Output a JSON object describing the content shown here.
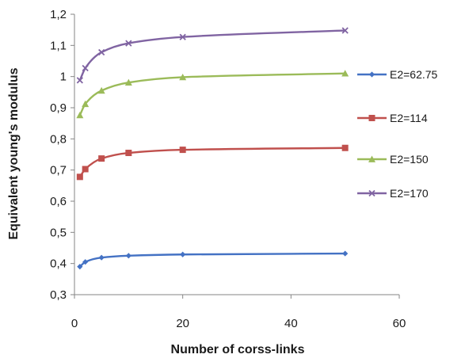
{
  "chart_data": {
    "type": "line",
    "title": "",
    "xlabel": "Number of corss-links",
    "ylabel": "Equivalent young's modulus",
    "xlim": [
      0,
      60
    ],
    "ylim": [
      0.3,
      1.2
    ],
    "xticks": [
      0,
      20,
      40,
      60
    ],
    "yticks": [
      0.3,
      0.4,
      0.5,
      0.6,
      0.7,
      0.8,
      0.9,
      1.0,
      1.1,
      1.2
    ],
    "xtick_labels": [
      "0",
      "20",
      "40",
      "60"
    ],
    "ytick_labels": [
      "0,3",
      "0,4",
      "0,5",
      "0,6",
      "0,7",
      "0,8",
      "0,9",
      "1",
      "1,1",
      "1,2"
    ],
    "grid": false,
    "legend_position": "right",
    "x": [
      1,
      2,
      5,
      10,
      20,
      50
    ],
    "series": [
      {
        "name": "E2=62.75",
        "color": "#4472C4",
        "marker": "diamond",
        "values": [
          0.39,
          0.405,
          0.419,
          0.425,
          0.429,
          0.432
        ]
      },
      {
        "name": "E2=114",
        "color": "#C0504D",
        "marker": "square",
        "values": [
          0.678,
          0.703,
          0.737,
          0.755,
          0.765,
          0.771
        ]
      },
      {
        "name": "E2=150",
        "color": "#9BBB59",
        "marker": "triangle",
        "values": [
          0.876,
          0.912,
          0.955,
          0.981,
          0.998,
          1.01
        ]
      },
      {
        "name": "E2=170",
        "color": "#8064A2",
        "marker": "x",
        "values": [
          0.988,
          1.027,
          1.078,
          1.107,
          1.127,
          1.148
        ]
      }
    ]
  }
}
